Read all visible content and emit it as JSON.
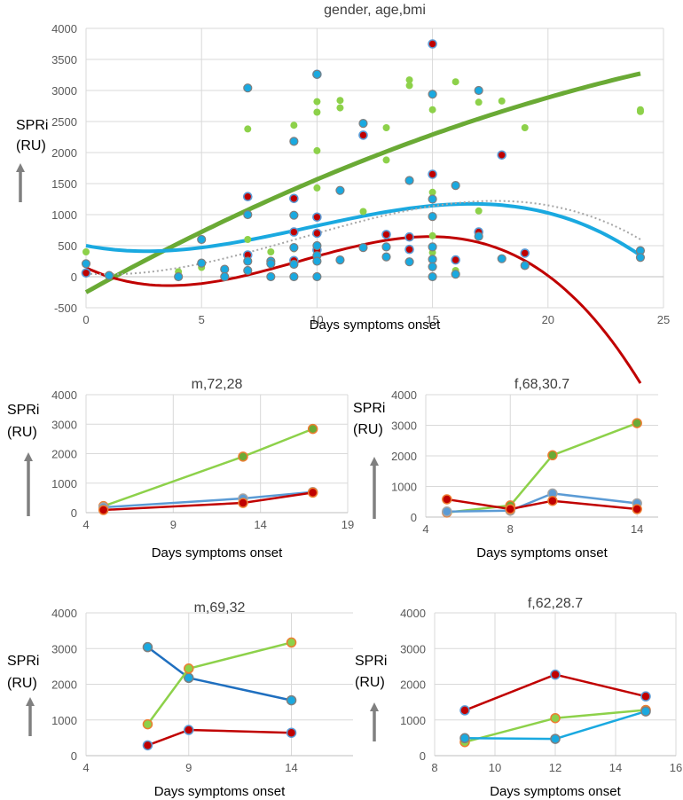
{
  "colors": {
    "green_light": "#8dd14a",
    "green_dark": "#6aaa35",
    "red": "#c00000",
    "blue_cyan": "#1aa9e0",
    "blue_mid": "#5b9bd5",
    "blue_dark": "#1f6fbf",
    "orange_edge": "#ed7d31",
    "grey": "#7f7f7f"
  },
  "chart_data": [
    {
      "type": "scatter",
      "title": "gender, age,bmi",
      "xlabel": "Days symptoms onset",
      "ylabel": "SPRi\n(RU)",
      "xlim": [
        0,
        25
      ],
      "ylim": [
        -500,
        4000
      ],
      "xticks": [
        0,
        5,
        10,
        15,
        20,
        25
      ],
      "yticks": [
        -500,
        0,
        500,
        1000,
        1500,
        2000,
        2500,
        3000,
        3500,
        4000
      ],
      "series": [
        {
          "name": "green",
          "points": [
            [
              0,
              400
            ],
            [
              4,
              80
            ],
            [
              5,
              150
            ],
            [
              7,
              2380
            ],
            [
              7,
              600
            ],
            [
              8,
              400
            ],
            [
              9,
              2440
            ],
            [
              9,
              450
            ],
            [
              10,
              2820
            ],
            [
              10,
              2650
            ],
            [
              10,
              2030
            ],
            [
              10,
              1430
            ],
            [
              11,
              2840
            ],
            [
              11,
              2720
            ],
            [
              12,
              1050
            ],
            [
              13,
              2400
            ],
            [
              13,
              1880
            ],
            [
              14,
              3170
            ],
            [
              14,
              3080
            ],
            [
              15,
              2690
            ],
            [
              15,
              1360
            ],
            [
              15,
              660
            ],
            [
              15,
              390
            ],
            [
              16,
              3140
            ],
            [
              16,
              100
            ],
            [
              17,
              2810
            ],
            [
              17,
              1060
            ],
            [
              18,
              2830
            ],
            [
              19,
              2400
            ],
            [
              24,
              2690
            ],
            [
              24,
              2660
            ]
          ]
        },
        {
          "name": "red",
          "points": [
            [
              0,
              60
            ],
            [
              7,
              1290
            ],
            [
              7,
              350
            ],
            [
              9,
              1260
            ],
            [
              9,
              720
            ],
            [
              9,
              260
            ],
            [
              10,
              3260
            ],
            [
              10,
              960
            ],
            [
              10,
              700
            ],
            [
              10,
              430
            ],
            [
              12,
              2280
            ],
            [
              13,
              680
            ],
            [
              14,
              640
            ],
            [
              14,
              440
            ],
            [
              15,
              3750
            ],
            [
              15,
              1650
            ],
            [
              16,
              270
            ],
            [
              17,
              720
            ],
            [
              18,
              1960
            ],
            [
              19,
              380
            ]
          ]
        },
        {
          "name": "blue",
          "points": [
            [
              0,
              210
            ],
            [
              1,
              20
            ],
            [
              4,
              0
            ],
            [
              5,
              600
            ],
            [
              5,
              220
            ],
            [
              6,
              120
            ],
            [
              6,
              0
            ],
            [
              7,
              3040
            ],
            [
              7,
              1000
            ],
            [
              7,
              250
            ],
            [
              7,
              100
            ],
            [
              8,
              250
            ],
            [
              8,
              210
            ],
            [
              8,
              0
            ],
            [
              9,
              2180
            ],
            [
              9,
              990
            ],
            [
              9,
              470
            ],
            [
              9,
              200
            ],
            [
              9,
              0
            ],
            [
              10,
              3260
            ],
            [
              10,
              500
            ],
            [
              10,
              340
            ],
            [
              10,
              250
            ],
            [
              10,
              0
            ],
            [
              11,
              1390
            ],
            [
              11,
              270
            ],
            [
              12,
              2470
            ],
            [
              12,
              470
            ],
            [
              13,
              480
            ],
            [
              13,
              320
            ],
            [
              14,
              1550
            ],
            [
              14,
              240
            ],
            [
              15,
              2940
            ],
            [
              15,
              1250
            ],
            [
              15,
              970
            ],
            [
              15,
              480
            ],
            [
              15,
              280
            ],
            [
              15,
              160
            ],
            [
              15,
              0
            ],
            [
              16,
              1470
            ],
            [
              16,
              40
            ],
            [
              17,
              3000
            ],
            [
              17,
              650
            ],
            [
              18,
              290
            ],
            [
              19,
              180
            ],
            [
              24,
              420
            ],
            [
              24,
              310
            ]
          ]
        }
      ],
      "trendlines": [
        {
          "name": "green-trend",
          "coeffs": [
            -250,
            206.8,
            -2.5
          ],
          "xrange": [
            0,
            24
          ]
        },
        {
          "name": "red-trend",
          "coeffs": [
            147,
            -175.6,
            30.32,
            -1.0932
          ],
          "xrange": [
            0,
            24
          ]
        },
        {
          "name": "blue-trend",
          "coeffs": [
            500,
            -71.4,
            15.82,
            -0.5466
          ],
          "xrange": [
            0,
            24
          ]
        },
        {
          "name": "grey-dotted-trend",
          "coeffs": [
            50,
            -25,
            14,
            -0.5
          ],
          "xrange": [
            0,
            24
          ]
        }
      ]
    },
    {
      "type": "line",
      "title": "m,72,28",
      "xlabel": "Days symptoms onset",
      "ylabel": "SPRi\n(RU)",
      "xlim": [
        4,
        19
      ],
      "ylim": [
        0,
        4000
      ],
      "xticks": [
        4,
        9,
        14,
        19
      ],
      "yticks": [
        0,
        1000,
        2000,
        3000,
        4000
      ],
      "series": [
        {
          "name": "green",
          "x": [
            5,
            13,
            17
          ],
          "y": [
            220,
            1900,
            2840
          ]
        },
        {
          "name": "blue",
          "x": [
            5,
            13,
            17
          ],
          "y": [
            180,
            480,
            700
          ]
        },
        {
          "name": "red",
          "x": [
            5,
            13,
            17
          ],
          "y": [
            90,
            330,
            680
          ]
        }
      ]
    },
    {
      "type": "line",
      "title": "f,68,30.7",
      "xlabel": "Days symptoms onset",
      "ylabel": "SPRi\n(RU)",
      "xlim": [
        4,
        15
      ],
      "ylim": [
        0,
        4000
      ],
      "xticks": [
        4,
        8,
        14
      ],
      "yticks": [
        0,
        1000,
        2000,
        3000,
        4000
      ],
      "series": [
        {
          "name": "green",
          "x": [
            5,
            8,
            10,
            14
          ],
          "y": [
            150,
            380,
            2020,
            3070
          ]
        },
        {
          "name": "blue",
          "x": [
            5,
            8,
            10,
            14
          ],
          "y": [
            180,
            210,
            770,
            450
          ]
        },
        {
          "name": "red",
          "x": [
            5,
            8,
            10,
            14
          ],
          "y": [
            580,
            260,
            530,
            260
          ]
        }
      ]
    },
    {
      "type": "line",
      "title": "m,69,32",
      "xlabel": "Days symptoms onset",
      "ylabel": "SPRi\n(RU)",
      "xlim": [
        4,
        17
      ],
      "ylim": [
        0,
        4000
      ],
      "xticks": [
        4,
        9,
        14
      ],
      "yticks": [
        0,
        1000,
        2000,
        3000,
        4000
      ],
      "series": [
        {
          "name": "blue",
          "x": [
            7,
            9,
            14
          ],
          "y": [
            3040,
            2180,
            1550
          ]
        },
        {
          "name": "green",
          "x": [
            7,
            9,
            14
          ],
          "y": [
            880,
            2440,
            3170
          ]
        },
        {
          "name": "red",
          "x": [
            7,
            9,
            14
          ],
          "y": [
            290,
            720,
            640
          ]
        }
      ]
    },
    {
      "type": "line",
      "title": "f,62,28.7",
      "xlabel": "Days symptoms onset",
      "ylabel": "SPRi\n(RU)",
      "xlim": [
        8,
        16
      ],
      "ylim": [
        0,
        4000
      ],
      "xticks": [
        8,
        10,
        12,
        14,
        16
      ],
      "yticks": [
        0,
        1000,
        2000,
        3000,
        4000
      ],
      "series": [
        {
          "name": "red",
          "x": [
            9,
            12,
            15
          ],
          "y": [
            1270,
            2270,
            1660
          ]
        },
        {
          "name": "green",
          "x": [
            9,
            12,
            15
          ],
          "y": [
            380,
            1050,
            1280
          ]
        },
        {
          "name": "blue",
          "x": [
            9,
            12,
            15
          ],
          "y": [
            490,
            470,
            1240
          ]
        }
      ]
    }
  ]
}
